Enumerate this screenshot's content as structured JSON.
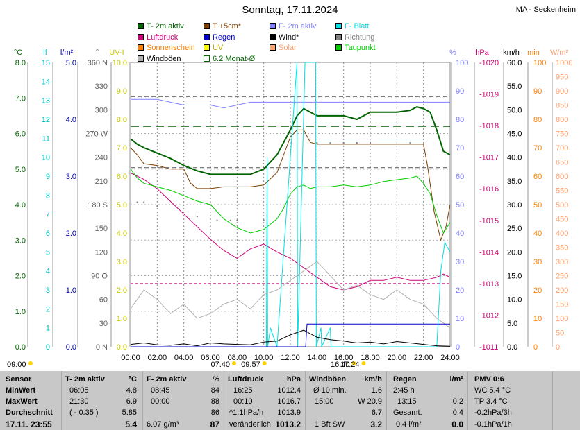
{
  "title": "Sonntag, 17.11.2024",
  "station": "MA - Seckenheim",
  "legend": [
    {
      "label": "T- 2m aktiv",
      "color": "#006400",
      "style": "box"
    },
    {
      "label": "T +5cm*",
      "color": "#7b3f00",
      "style": "box"
    },
    {
      "label": "F- 2m aktiv",
      "color": "#8080ff",
      "style": "box"
    },
    {
      "label": "F- Blatt",
      "color": "#00e0e0",
      "style": "box"
    },
    {
      "label": "Luftdruck",
      "color": "#cc0077",
      "style": "box"
    },
    {
      "label": "Regen",
      "color": "#0000cc",
      "style": "box"
    },
    {
      "label": "Wind*",
      "color": "#000000",
      "style": "box"
    },
    {
      "label": "Richtung",
      "color": "#808080",
      "style": "box"
    },
    {
      "label": "Sonnenschein",
      "color": "#ff8000",
      "style": "box"
    },
    {
      "label": "UV",
      "color": "#ffff00",
      "style": "box"
    },
    {
      "label": "Solar",
      "color": "#ffa070",
      "style": "box"
    },
    {
      "label": "Taupunkt",
      "color": "#00cc00",
      "style": "box"
    },
    {
      "label": "Windböen",
      "color": "#b0b0b0",
      "style": "box"
    },
    {
      "label": "6.2 Monat-Ø",
      "color": "#006400",
      "style": "outline"
    }
  ],
  "axis_units": {
    "temp": "°C",
    "leaf": "lf",
    "rain": "l/m²",
    "dir": "°",
    "uv": "UV-I",
    "hum": "%",
    "press": "hPa",
    "wind": "km/h",
    "sun": "min",
    "solar": "W/m²"
  },
  "colors": {
    "temp": "#006400",
    "leaf": "#00c0c0",
    "rain": "#0000aa",
    "dir": "#606060",
    "uv": "#c8c800",
    "hum": "#8080ff",
    "press": "#cc0077",
    "wind": "#000000",
    "sun": "#ff8000",
    "solar": "#ffa070"
  },
  "axis_ticks": {
    "temp": [
      "0.0",
      "1.0",
      "2.0",
      "3.0",
      "4.0",
      "5.0",
      "6.0",
      "7.0",
      "8.0"
    ],
    "leaf": [
      "0",
      "1",
      "2",
      "3",
      "4",
      "5",
      "6",
      "7",
      "8",
      "9",
      "10",
      "11",
      "12",
      "13",
      "14",
      "15"
    ],
    "rain": [
      "0.0",
      "1.0",
      "2.0",
      "3.0",
      "4.0",
      "5.0"
    ],
    "dir": [
      "0 N",
      "30",
      "60",
      "90 O",
      "120",
      "150",
      "180 S",
      "210",
      "240",
      "270 W",
      "300",
      "330",
      "360 N"
    ],
    "uv": [
      "0.0",
      "1.0",
      "2.0",
      "3.0",
      "4.0",
      "5.0",
      "6.0",
      "7.0",
      "8.0",
      "9.0",
      "10.0"
    ],
    "hum": [
      "0",
      "10",
      "20",
      "30",
      "40",
      "50",
      "60",
      "70",
      "80",
      "90",
      "100"
    ],
    "press": [
      "-1011",
      "-1012",
      "-1013",
      "-1014",
      "-1015",
      "-1016",
      "-1017",
      "-1018",
      "-1019",
      "-1020"
    ],
    "wind": [
      "0.0",
      "5.0",
      "10.0",
      "15.0",
      "20.0",
      "25.0",
      "30.0",
      "35.0",
      "40.0",
      "45.0",
      "50.0",
      "55.0",
      "60.0"
    ],
    "sun": [
      "0",
      "10",
      "20",
      "30",
      "40",
      "50",
      "60",
      "70",
      "80",
      "90",
      "100"
    ],
    "solar": [
      "0",
      "50",
      "100",
      "150",
      "200",
      "250",
      "300",
      "350",
      "400",
      "450",
      "500",
      "550",
      "600",
      "650",
      "700",
      "750",
      "800",
      "850",
      "900",
      "950",
      "1000"
    ]
  },
  "chart_data": {
    "type": "line",
    "x_ticks": [
      "00:00",
      "02:00",
      "04:00",
      "06:00",
      "08:00",
      "10:00",
      "12:00",
      "14:00",
      "16:00",
      "18:00",
      "20:00",
      "22:00",
      "24:00"
    ],
    "x_range_hours": [
      0,
      24
    ],
    "series": [
      {
        "name": "T- 2m aktiv",
        "unit": "°C",
        "color": "#006400",
        "x": [
          0,
          0.5,
          1,
          2,
          3,
          4,
          5,
          6,
          7,
          8,
          9,
          10,
          11,
          12,
          12.5,
          13,
          13.5,
          14,
          15,
          16,
          17,
          18,
          19,
          20,
          21,
          21.5,
          22,
          22.5,
          23,
          23.5,
          24
        ],
        "y": [
          5.85,
          5.7,
          5.6,
          5.45,
          5.3,
          5.1,
          4.95,
          4.85,
          4.85,
          4.85,
          4.85,
          5.0,
          5.4,
          6.1,
          6.5,
          6.7,
          6.6,
          6.5,
          6.5,
          6.5,
          6.4,
          6.6,
          6.6,
          6.6,
          6.65,
          6.75,
          6.7,
          6.6,
          6.1,
          5.5,
          5.4
        ]
      },
      {
        "name": "T +5cm*",
        "unit": "°C",
        "color": "#7b3f00",
        "x": [
          0,
          0.5,
          1,
          2,
          3,
          4,
          4.5,
          5,
          6,
          7,
          8,
          9,
          10,
          11,
          12,
          12.5,
          13,
          13.5,
          14,
          15,
          16,
          17,
          18,
          19,
          20,
          21,
          22,
          22.3,
          22.8,
          23.3,
          23.7,
          24
        ],
        "y": [
          5.6,
          5.4,
          5.15,
          5.1,
          5.0,
          5.0,
          4.6,
          4.45,
          4.45,
          4.5,
          4.5,
          4.5,
          4.55,
          4.9,
          5.9,
          6.1,
          6.1,
          5.75,
          5.7,
          5.7,
          5.7,
          5.7,
          5.7,
          5.7,
          5.7,
          5.7,
          5.7,
          5.1,
          3.8,
          3.0,
          3.4,
          4.0
        ]
      },
      {
        "name": "F- 2m aktiv",
        "unit": "%",
        "color": "#8080ff",
        "x": [
          0,
          1,
          2,
          3,
          4,
          5,
          6,
          7,
          8,
          9,
          10,
          11,
          12,
          13,
          14,
          15,
          16,
          17,
          18,
          19,
          20,
          21,
          22,
          23,
          24
        ],
        "y": [
          87,
          87,
          87,
          86,
          85,
          85,
          85,
          84,
          85,
          86,
          86,
          86,
          86,
          86,
          86,
          86,
          86,
          86,
          86,
          86,
          86,
          86,
          86,
          86,
          86
        ]
      },
      {
        "name": "Luftdruck",
        "unit": "hPa",
        "color": "#cc0077",
        "x": [
          0,
          0.5,
          1,
          2,
          3,
          4,
          5,
          6,
          7,
          8,
          9,
          10,
          11,
          12,
          13,
          14,
          15,
          16,
          17,
          18,
          19,
          20,
          21,
          22,
          23,
          23.5,
          24
        ],
        "y": [
          1016.5,
          1016.4,
          1016.3,
          1016.0,
          1015.6,
          1015.2,
          1014.8,
          1014.4,
          1014.05,
          1013.8,
          1014.1,
          1014.25,
          1014.0,
          1013.8,
          1013.5,
          1013.2,
          1012.9,
          1012.8,
          1012.9,
          1013.1,
          1013.1,
          1013.2,
          1013.1,
          1013.1,
          1013.2,
          1013.3,
          1013.2
        ]
      },
      {
        "name": "Taupunkt",
        "unit": "°C",
        "color": "#00cc00",
        "x": [
          0,
          0.5,
          1,
          2,
          3,
          4,
          5,
          6,
          7,
          8,
          9,
          10,
          11,
          11.5,
          12,
          12.5,
          13,
          13.5,
          14,
          15,
          16,
          17,
          18,
          19,
          20,
          21,
          21.5,
          22,
          22.5,
          23,
          23.5,
          24
        ],
        "y": [
          5.0,
          4.75,
          4.6,
          4.5,
          4.4,
          4.25,
          4.1,
          4.0,
          3.6,
          3.35,
          3.2,
          3.3,
          3.6,
          3.9,
          4.3,
          4.5,
          4.55,
          4.45,
          4.5,
          4.5,
          4.55,
          4.5,
          4.55,
          4.65,
          4.7,
          4.75,
          4.8,
          4.6,
          4.3,
          3.7,
          3.2,
          3.5
        ]
      },
      {
        "name": "F- Blatt",
        "unit": "lf",
        "color": "#00e0e0",
        "x": [
          0,
          10.2,
          10.25,
          10.3,
          10.5,
          11.0,
          12.5,
          12.55,
          13.1,
          13.15,
          13.9,
          13.95,
          14.3,
          14.35,
          15.0,
          15.05,
          23,
          23.3,
          23.6,
          24
        ],
        "y": [
          0,
          0,
          10,
          0,
          1,
          0,
          15,
          0,
          15,
          15,
          15,
          0,
          1,
          0,
          1,
          0,
          0,
          4,
          5.5,
          5
        ]
      },
      {
        "name": "Windböen",
        "unit": "km/h",
        "color": "#b0b0b0",
        "x": [
          0,
          1,
          2,
          3,
          4,
          5,
          6,
          7,
          8,
          9,
          10,
          11,
          12,
          13,
          14,
          15,
          16,
          17,
          18,
          19,
          20,
          21,
          22,
          23,
          24
        ],
        "y": [
          8,
          12,
          10,
          7,
          9,
          6,
          7,
          9,
          10,
          8,
          11,
          12,
          14,
          16,
          18,
          15,
          12,
          13,
          11,
          10,
          12,
          10,
          9,
          6,
          4
        ]
      },
      {
        "name": "Wind*",
        "unit": "km/h",
        "color": "#000000",
        "x": [
          0,
          1,
          2,
          3,
          4,
          5,
          6,
          7,
          8,
          9,
          10,
          11,
          12,
          13,
          14,
          15,
          16,
          17,
          18,
          19,
          20,
          21,
          22,
          23,
          24
        ],
        "y": [
          0.5,
          0.8,
          0.4,
          0.3,
          0.6,
          0.2,
          0.8,
          0.6,
          0.5,
          0.4,
          1.0,
          1.2,
          2.5,
          3.5,
          2.0,
          1.5,
          1.2,
          0.8,
          1.0,
          0.6,
          1.1,
          0.8,
          0.5,
          0.2,
          0.1
        ]
      },
      {
        "name": "Regen",
        "unit": "l/m²",
        "color": "#0000cc",
        "x": [
          0,
          13.15,
          13.2,
          13.25,
          14,
          24
        ],
        "y": [
          0,
          0,
          0.2,
          0.4,
          0.4,
          0.4
        ]
      },
      {
        "name": "Richtung",
        "unit": "°",
        "color": "#808080",
        "x": [
          0.5,
          1,
          2,
          5,
          6.5,
          7.5,
          8,
          10,
          12,
          14,
          15,
          16,
          17,
          18,
          21
        ],
        "y": [
          183,
          183,
          178,
          165,
          160,
          160,
          160,
          160,
          278,
          258,
          258,
          258,
          258,
          258,
          258
        ]
      },
      {
        "name": "6.2 Monat-Ø",
        "unit": "°C",
        "color": "#006400",
        "x": [
          0,
          24
        ],
        "y": [
          6.2,
          6.2
        ]
      }
    ],
    "reference_lines": {
      "hum_dashed": [
        88,
        63
      ],
      "press_dashed": [
        1013.0
      ],
      "temp_dashed": [
        6.2
      ]
    },
    "xlabel": "",
    "ylabel": "°C"
  },
  "sun_markers": [
    {
      "label": "09:00",
      "pos": 0,
      "row": 1
    },
    {
      "label": "07:40",
      "pos": 7.67,
      "row": 1
    },
    {
      "label": "09:57",
      "pos": 9.95,
      "row": 1
    },
    {
      "label": "16:40",
      "pos": 16.67,
      "row": 1
    },
    {
      "label": "17:24",
      "pos": 17.4,
      "row": 1
    }
  ],
  "table": {
    "labels": {
      "sensor": "Sensor",
      "min": "MinWert",
      "max": "MaxWert",
      "avg": "Durchschnitt",
      "now": "17.11. 23:55"
    },
    "temp": {
      "head": "T- 2m aktiv",
      "unit": "°C",
      "min_t": "06:05",
      "min_v": "4.8",
      "max_t": "21:30",
      "max_v": "6.9",
      "avg_t": "( - 0.35 )",
      "avg_v": "5.85",
      "now": "5.4"
    },
    "hum": {
      "head": "F- 2m aktiv",
      "unit": "%",
      "min_t": "08:45",
      "min_v": "84",
      "max_t": "00:00",
      "max_v": "88",
      "avg_v": "86",
      "now_note": "6.07 g/m³",
      "now": "87"
    },
    "press": {
      "head": "Luftdruck",
      "unit": "hPa",
      "min_t": "16:25",
      "min_v": "1012.4",
      "max_t": "00:10",
      "max_v": "1016.7",
      "avg_t": "^1.1hPa/h",
      "avg_v": "1013.9",
      "now_note": "veränderlich",
      "now": "1013.2"
    },
    "wind": {
      "head": "Windböen",
      "unit": "km/h",
      "min_t": "Ø 10 min.",
      "min_v": "1.6",
      "max_t": "15:00",
      "max_v": "W 20.9",
      "avg_v": "6.7",
      "now_note": "1 Bft SW",
      "now": "3.2"
    },
    "rain": {
      "head": "Regen",
      "unit": "l/m²",
      "min_t": "2:45 h",
      "max_t": "13:15",
      "max_v": "0.2",
      "avg_t": "Gesamt:",
      "avg_v": "0.4",
      "now_note": "0.4 l/m²",
      "now": "0.0"
    },
    "pmv": {
      "head": "PMV 0:6",
      "l1": "WC 5.4 °C",
      "l2": "TP 3.4 °C",
      "l3": "-0.2hPa/3h",
      "l4": "-0.1hPa/1h"
    }
  }
}
